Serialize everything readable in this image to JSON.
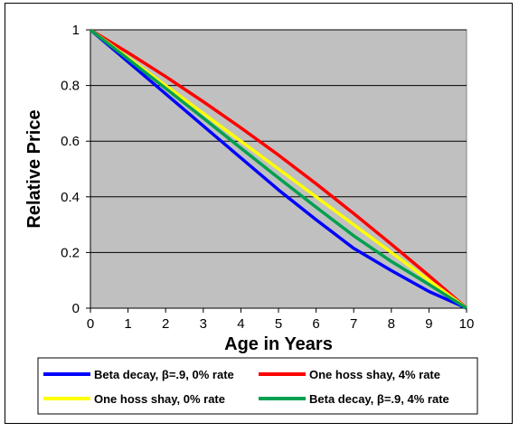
{
  "chart_data": {
    "type": "line",
    "title": "",
    "xlabel": "Age in Years",
    "ylabel": "Relative Price",
    "xlim": [
      0,
      10
    ],
    "ylim": [
      0,
      1
    ],
    "xticks": [
      0,
      1,
      2,
      3,
      4,
      5,
      6,
      7,
      8,
      9,
      10
    ],
    "yticks": [
      0,
      0.2,
      0.4,
      0.6,
      0.8,
      1
    ],
    "ytick_labels": [
      "0",
      "0.2",
      "0.4",
      "0.6",
      "0.8",
      "1"
    ],
    "grid": "horizontal",
    "plot_background": "#c0c0c0",
    "legend_position": "bottom",
    "series": [
      {
        "name": "Beta decay,  β=.9, 0% rate",
        "color": "#0000ff",
        "x": [
          0,
          1,
          2,
          3,
          4,
          5,
          6,
          7,
          8,
          9,
          10
        ],
        "y": [
          1.0,
          0.885,
          0.77,
          0.655,
          0.54,
          0.425,
          0.318,
          0.215,
          0.135,
          0.06,
          0.0
        ]
      },
      {
        "name": "One hoss shay, 4% rate",
        "color": "#ff0000",
        "x": [
          0,
          1,
          2,
          3,
          4,
          5,
          6,
          7,
          8,
          9,
          10
        ],
        "y": [
          1.0,
          0.918,
          0.832,
          0.742,
          0.648,
          0.55,
          0.447,
          0.34,
          0.23,
          0.117,
          0.0
        ]
      },
      {
        "name": "One hoss shay, 0% rate",
        "color": "#ffff00",
        "x": [
          0,
          1,
          2,
          3,
          4,
          5,
          6,
          7,
          8,
          9,
          10
        ],
        "y": [
          1.0,
          0.9,
          0.8,
          0.7,
          0.6,
          0.5,
          0.4,
          0.3,
          0.2,
          0.1,
          0.0
        ]
      },
      {
        "name": "Beta decay,  β=.9, 4% rate",
        "color": "#00a050",
        "x": [
          0,
          1,
          2,
          3,
          4,
          5,
          6,
          7,
          8,
          9,
          10
        ],
        "y": [
          1.0,
          0.895,
          0.79,
          0.683,
          0.575,
          0.468,
          0.363,
          0.26,
          0.168,
          0.085,
          0.0
        ]
      }
    ]
  }
}
